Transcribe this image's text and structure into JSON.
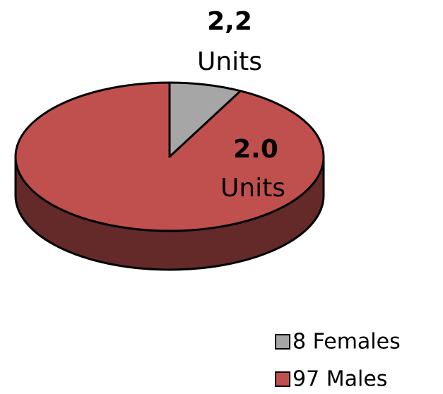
{
  "chart_data": {
    "type": "pie",
    "categories": [
      "8 Females",
      "97 Males"
    ],
    "values": [
      8,
      97
    ],
    "colors": [
      "#a6a6a6",
      "#c0504d"
    ],
    "side_color": "#632a29",
    "annotations": [
      {
        "lines": [
          "2,2",
          "Units"
        ]
      },
      {
        "lines": [
          "2.0",
          "Units"
        ]
      }
    ]
  }
}
